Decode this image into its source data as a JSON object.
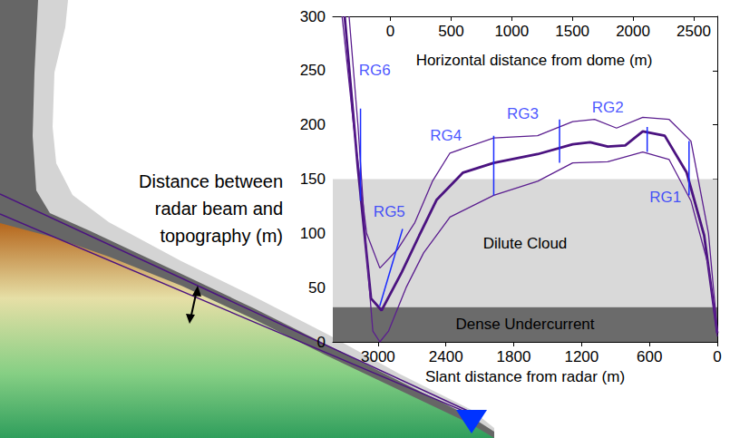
{
  "chart_data": {
    "type": "line",
    "xlabel": "Slant distance from radar (m)",
    "ylabel": "Distance between radar beam and topography (m)",
    "x2label": "Horizontal distance from dome (m)",
    "xlim": [
      3400,
      0
    ],
    "xticks": [
      3000,
      2400,
      1800,
      1200,
      600,
      0
    ],
    "x2lim": [
      -475,
      2695
    ],
    "x2ticks": [
      0,
      500,
      1000,
      1500,
      2000,
      2500
    ],
    "ylim": [
      0,
      300
    ],
    "yticks": [
      0,
      50,
      100,
      150,
      200,
      250,
      300
    ],
    "grid": false,
    "series": [
      {
        "color": "#4b1380",
        "line_style": "bold",
        "x": [
          3295,
          3178,
          3062,
          2969,
          2791,
          2636,
          2481,
          2248,
          1977,
          1589,
          1279,
          1124,
          969,
          814,
          659,
          465,
          271,
          116,
          0
        ],
        "values": [
          300,
          160,
          40,
          29,
          64,
          98,
          131,
          156,
          165,
          173,
          182,
          184,
          180,
          181,
          194,
          190,
          156,
          98,
          8
        ]
      },
      {
        "color": "#5b1e8f",
        "line_style": "solid",
        "x": [
          3318,
          3217,
          3101,
          2984,
          2829,
          2674,
          2519,
          2364,
          1977,
          1589,
          1279,
          1085,
          891,
          659,
          426,
          233,
          78,
          0
        ],
        "values": [
          300,
          200,
          100,
          68,
          85,
          110,
          148,
          174,
          188,
          190,
          203,
          205,
          197,
          207,
          205,
          185,
          100,
          10
        ]
      },
      {
        "color": "#5b1e8f",
        "line_style": "solid",
        "x": [
          3256,
          3178,
          3101,
          3046,
          2984,
          2907,
          2752,
          2597,
          2364,
          1977,
          1589,
          1279,
          969,
          659,
          426,
          233,
          78,
          0
        ],
        "values": [
          300,
          200,
          80,
          10,
          0,
          10,
          50,
          82,
          115,
          135,
          148,
          165,
          166,
          175,
          168,
          130,
          70,
          5
        ]
      }
    ],
    "bands": [
      {
        "label": "Dilute Cloud",
        "range": [
          32,
          150
        ],
        "color": "#d9d9d9"
      },
      {
        "label": "Dense Undercurrent",
        "range": [
          0,
          32
        ],
        "color": "#6b6b6b"
      }
    ],
    "annotations": [
      {
        "text": "RG6",
        "x": [
          3155,
          3155
        ],
        "y": [
          215,
          130
        ],
        "text_x": 3030,
        "text_y": 250,
        "color": "#1a2bff"
      },
      {
        "text": "RG5",
        "x": [
          2783,
          2985
        ],
        "y": [
          104,
          33
        ],
        "text_x": 2900,
        "text_y": 120,
        "color": "#1a2bff"
      },
      {
        "text": "RG4",
        "x": [
          1977,
          1977
        ],
        "y": [
          190,
          135
        ],
        "text_x": 2400,
        "text_y": 190,
        "color": "#1a2bff"
      },
      {
        "text": "RG3",
        "x": [
          1395,
          1395
        ],
        "y": [
          205,
          165
        ],
        "text_x": 1721,
        "text_y": 210,
        "color": "#1a2bff"
      },
      {
        "text": "RG2",
        "x": [
          620,
          620
        ],
        "y": [
          198,
          175
        ],
        "text_x": 969,
        "text_y": 216,
        "color": "#1a2bff"
      },
      {
        "text": "RG1",
        "x": [
          250,
          250
        ],
        "y": [
          185,
          135
        ],
        "text_x": 460,
        "text_y": 133,
        "color": "#1a2bff"
      }
    ]
  }
}
